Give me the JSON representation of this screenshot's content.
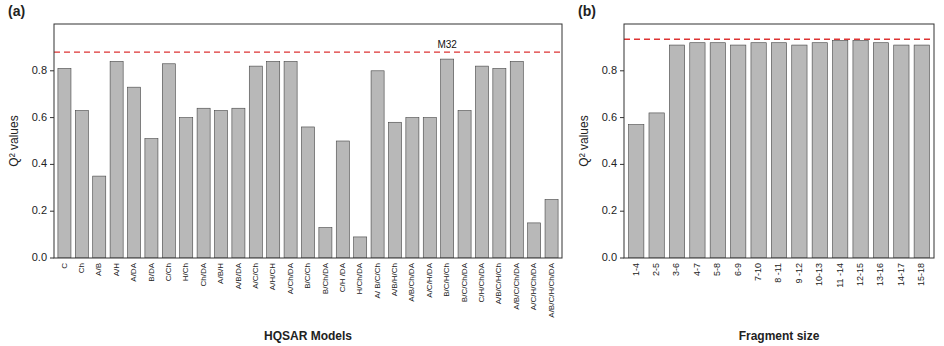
{
  "chart_data": [
    {
      "type": "bar",
      "title": "(a)",
      "x_label": "HQSAR Models",
      "y_label": "Q² values",
      "categories": [
        "C",
        "Ch",
        "A/B",
        "A/H",
        "A/DA",
        "B/DA",
        "C/Ch",
        "H/Ch",
        "Ch/DA",
        "A/B/H",
        "A/B/DA",
        "A/C/Ch",
        "A/H/CH",
        "A/Ch/DA",
        "B/C/Ch",
        "B/Ch/DA",
        "C/H /DA",
        "H/Ch/DA",
        "A/ B/C/Ch",
        "A/B/H/Ch",
        "A/B/Ch/DA",
        "A/C/H/DA",
        "B/C/H/Ch",
        "B/C/Ch/DA",
        "C/H/Ch/DA",
        "A/B/C/H/Ch",
        "A/B/C/Ch/DA",
        "A/C/H/Ch/DA",
        "A/B/C/H/Ch/DA"
      ],
      "values": [
        0.81,
        0.63,
        0.35,
        0.84,
        0.73,
        0.51,
        0.83,
        0.6,
        0.64,
        0.63,
        0.64,
        0.82,
        0.84,
        0.84,
        0.56,
        0.13,
        0.5,
        0.09,
        0.8,
        0.58,
        0.6,
        0.6,
        0.85,
        0.63,
        0.82,
        0.81,
        0.84,
        0.15,
        0.25
      ],
      "color": "#b8b8b8",
      "reference_line": {
        "y": 0.88,
        "color": "#dd3333",
        "line_style": "dashed"
      },
      "annotations": [
        {
          "text": "M32",
          "x": "B/C/H/Ch",
          "y": 0.88
        }
      ],
      "ylim": [
        0.0,
        1.0
      ],
      "yticks": [
        {
          "value": 0.0,
          "label": "0.0"
        },
        0.2,
        0.4,
        0.6,
        0.8
      ],
      "grid": false
    },
    {
      "type": "bar",
      "title": "(b)",
      "x_label": "Fragment size",
      "y_label": "Q² values",
      "categories": [
        "1-4",
        "2-5",
        "3-6",
        "4-7",
        "5-8",
        "6-9",
        "7-10",
        "8 -11",
        "9 -12",
        "10-13",
        "11 -14",
        "12-15",
        "13-16",
        "14-17",
        "15-18"
      ],
      "values": [
        0.57,
        0.62,
        0.91,
        0.92,
        0.92,
        0.91,
        0.92,
        0.92,
        0.91,
        0.92,
        0.93,
        0.93,
        0.92,
        0.91,
        0.91
      ],
      "color": "#b8b8b8",
      "reference_line": {
        "y": 0.935,
        "color": "#dd3333",
        "line_style": "dashed"
      },
      "ylim": [
        0.0,
        1.0
      ],
      "yticks": [
        {
          "value": 0.0,
          "label": "0.0"
        },
        0.2,
        0.4,
        0.6,
        0.8
      ],
      "grid": false
    }
  ]
}
